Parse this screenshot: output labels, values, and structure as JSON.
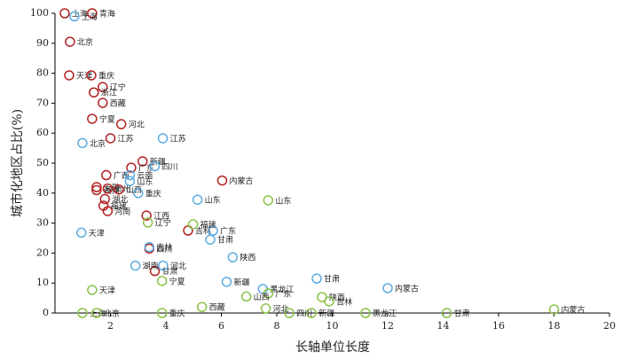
{
  "chart_data": {
    "type": "scatter",
    "x_label": "长轴单位长度",
    "y_label": "城市化地区占比(%)",
    "xlim": [
      0,
      20
    ],
    "xticks": [
      2,
      4,
      6,
      8,
      10,
      12,
      14,
      16,
      18,
      20
    ],
    "ylim": [
      0,
      100
    ],
    "yticks": [
      0,
      10,
      20,
      30,
      40,
      50,
      60,
      70,
      80,
      90,
      100
    ],
    "series": [
      {
        "color": "#b22222",
        "labels": [
          "上海",
          "青海",
          "北京",
          "天津",
          "重庆",
          "辽宁",
          "浙江",
          "西藏",
          "宁夏",
          "河北",
          "江苏",
          "新疆",
          "广东",
          "广西",
          "安徽",
          "湖南",
          "贵州",
          "山西",
          "湖北",
          "福建",
          "河南",
          "江西",
          "内蒙古",
          "吉林",
          "四川",
          "甘肃"
        ],
        "x": [
          0.35,
          1.34,
          0.54,
          0.51,
          1.31,
          1.72,
          1.4,
          1.72,
          1.34,
          2.39,
          2.0,
          3.16,
          2.75,
          1.85,
          1.5,
          1.5,
          1.9,
          2.3,
          1.8,
          1.75,
          1.9,
          3.3,
          6.03,
          4.8,
          3.4,
          3.6
        ],
        "values": [
          100,
          100,
          90.5,
          79.3,
          79.3,
          75.4,
          73.6,
          70.1,
          64.8,
          63,
          58.3,
          50.6,
          48.5,
          46,
          42,
          41,
          41.5,
          41.2,
          38,
          35.8,
          34,
          32.5,
          44.2,
          27.5,
          21.5,
          14
        ]
      },
      {
        "color": "#5dade2",
        "labels": [
          "上海",
          "北京",
          "江苏",
          "四川",
          "云南",
          "山东",
          "重庆",
          "山东",
          "天津",
          "广东",
          "甘肃",
          "陕西",
          "吉林",
          "湖南",
          "河北",
          "新疆",
          "黑龙江",
          "甘肃",
          "内蒙古"
        ],
        "x": [
          0.7,
          0.99,
          3.89,
          3.6,
          2.7,
          2.7,
          3.0,
          5.14,
          0.95,
          5.7,
          5.6,
          6.41,
          3.4,
          2.9,
          3.9,
          6.19,
          7.5,
          9.44,
          12.0
        ],
        "values": [
          99,
          56.7,
          58.3,
          49,
          46,
          44,
          40,
          37.8,
          26.8,
          27.5,
          24.5,
          18.6,
          22,
          15.8,
          15.8,
          10.4,
          8,
          11.5,
          8.3
        ]
      },
      {
        "color": "#8bc34a",
        "labels": [
          "山东",
          "福建",
          "辽宁",
          "天津",
          "广东",
          "陕西",
          "吉林",
          "内蒙古",
          "宁夏",
          "山西",
          "上海",
          "北京",
          "重庆",
          "西藏",
          "新疆",
          "四川",
          "黑龙江",
          "甘肃",
          "河北"
        ],
        "x": [
          7.69,
          4.98,
          3.35,
          1.34,
          7.69,
          9.63,
          9.89,
          18.0,
          3.86,
          6.9,
          0.99,
          1.5,
          3.86,
          5.3,
          9.25,
          8.45,
          11.2,
          14.13,
          7.6
        ],
        "values": [
          37.6,
          29.6,
          30.2,
          7.7,
          6.5,
          5.3,
          3.9,
          1.2,
          10.7,
          5.5,
          0,
          0,
          0,
          2,
          0,
          0,
          0,
          0,
          1.5
        ]
      }
    ]
  }
}
